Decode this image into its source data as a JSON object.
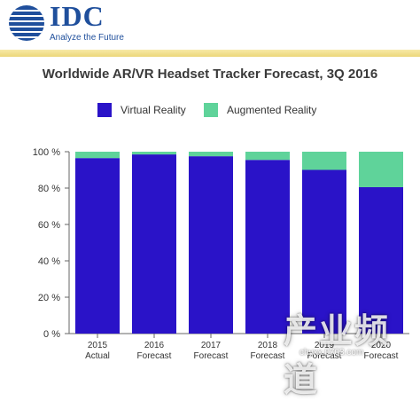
{
  "logo": {
    "text": "IDC",
    "tagline": "Analyze the Future"
  },
  "colors": {
    "vr": "#2a13c8",
    "ar": "#5fd39a",
    "brand": "#1f4f9c",
    "band": "#ecd77a"
  },
  "watermark": {
    "text": "产业频道",
    "url": "chyxx.0703.com"
  },
  "chart_data": {
    "type": "bar",
    "stacked": true,
    "title": "Worldwide AR/VR Headset Tracker Forecast, 3Q 2016",
    "categories": [
      "2015\nActual",
      "2016\nForecast",
      "2017\nForecast",
      "2018\nForecast",
      "2019\nForecast",
      "2020\nForecast"
    ],
    "series": [
      {
        "name": "Virtual Reality",
        "values": [
          96.5,
          98.5,
          97.5,
          95.5,
          90,
          80.5
        ]
      },
      {
        "name": "Augmented Reality",
        "values": [
          3.5,
          1.5,
          2.5,
          4.5,
          10,
          19.5
        ]
      }
    ],
    "yticks": [
      "0 %",
      "20 %",
      "40 %",
      "60 %",
      "80 %",
      "100 %"
    ],
    "ylim": [
      0,
      100
    ],
    "grid": false,
    "legend": "top"
  }
}
